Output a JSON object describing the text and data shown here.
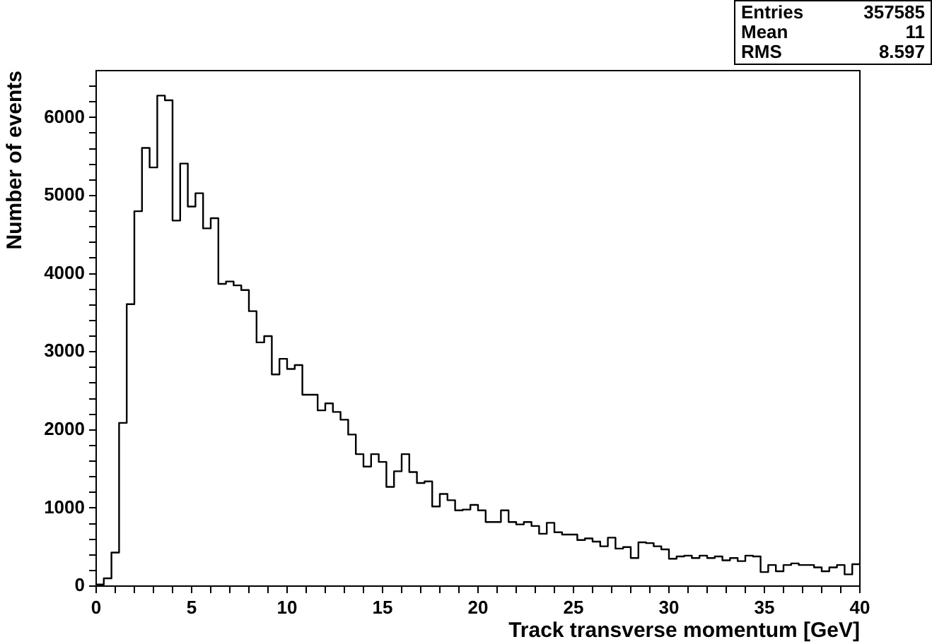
{
  "chart_data": {
    "type": "histogram",
    "xlabel": "Track transverse momentum [GeV]",
    "ylabel": "Number of events",
    "annotations": [
      "Entries",
      "357585",
      "Mean",
      "11",
      "RMS",
      "8.597"
    ],
    "bins": [
      0,
      0.4,
      0.8,
      1.2,
      1.6,
      2,
      2.4,
      2.8,
      3.2,
      3.6,
      4,
      4.4,
      4.8,
      5.2,
      5.6,
      6,
      6.4,
      6.8,
      7.2,
      7.6,
      8,
      8.4,
      8.8,
      9.2,
      9.6,
      10,
      10.4,
      10.8,
      11.2,
      11.6,
      12,
      12.4,
      12.8,
      13.2,
      13.6,
      14,
      14.4,
      14.8,
      15.2,
      15.6,
      16,
      16.4,
      16.8,
      17.2,
      17.6,
      18,
      18.4,
      18.8,
      19.2,
      19.6,
      20,
      20.4,
      20.8,
      21.2,
      21.6,
      22,
      22.4,
      22.8,
      23.2,
      23.6,
      24,
      24.4,
      24.8,
      25.2,
      25.6,
      26,
      26.4,
      26.8,
      27.2,
      27.6,
      28,
      28.4,
      28.8,
      29.2,
      29.6,
      30,
      30.4,
      30.8,
      31.2,
      31.6,
      32,
      32.4,
      32.8,
      33.2,
      33.6,
      34,
      34.4,
      34.8,
      35.2,
      35.6,
      36,
      36.4,
      36.8,
      37.2,
      37.6,
      38,
      38.4,
      38.8,
      39.2,
      39.6,
      40
    ],
    "values": [
      20,
      100,
      430,
      2090,
      3610,
      4800,
      5610,
      5360,
      6280,
      6220,
      4680,
      5410,
      4860,
      5030,
      4580,
      4710,
      3870,
      3900,
      3850,
      3790,
      3520,
      3120,
      3200,
      2710,
      2910,
      2780,
      2830,
      2450,
      2450,
      2250,
      2340,
      2230,
      2130,
      1940,
      1690,
      1530,
      1690,
      1590,
      1270,
      1470,
      1690,
      1460,
      1320,
      1340,
      1020,
      1180,
      1100,
      970,
      980,
      1040,
      970,
      820,
      820,
      970,
      820,
      790,
      820,
      770,
      670,
      810,
      690,
      660,
      660,
      590,
      610,
      570,
      510,
      620,
      480,
      500,
      360,
      560,
      550,
      510,
      470,
      350,
      380,
      390,
      360,
      390,
      360,
      380,
      330,
      360,
      320,
      390,
      380,
      180,
      270,
      190,
      270,
      290,
      270,
      270,
      240,
      190,
      240,
      270,
      150,
      280
    ],
    "color": "#000000",
    "xlim": [
      0,
      40
    ],
    "ylim": [
      0,
      6600
    ],
    "xticks": [
      0,
      {
        "value": 1,
        "label": null
      },
      {
        "value": 2,
        "label": null
      },
      {
        "value": 3,
        "label": null
      },
      {
        "value": 4,
        "label": null
      },
      5,
      {
        "value": 6,
        "label": null
      },
      {
        "value": 7,
        "label": null
      },
      {
        "value": 8,
        "label": null
      },
      {
        "value": 9,
        "label": null
      },
      10,
      {
        "value": 11,
        "label": null
      },
      {
        "value": 12,
        "label": null
      },
      {
        "value": 13,
        "label": null
      },
      {
        "value": 14,
        "label": null
      },
      15,
      {
        "value": 16,
        "label": null
      },
      {
        "value": 17,
        "label": null
      },
      {
        "value": 18,
        "label": null
      },
      {
        "value": 19,
        "label": null
      },
      20,
      {
        "value": 21,
        "label": null
      },
      {
        "value": 22,
        "label": null
      },
      {
        "value": 23,
        "label": null
      },
      {
        "value": 24,
        "label": null
      },
      25,
      {
        "value": 26,
        "label": null
      },
      {
        "value": 27,
        "label": null
      },
      {
        "value": 28,
        "label": null
      },
      {
        "value": 29,
        "label": null
      },
      30,
      {
        "value": 31,
        "label": null
      },
      {
        "value": 32,
        "label": null
      },
      {
        "value": 33,
        "label": null
      },
      {
        "value": 34,
        "label": null
      },
      35,
      {
        "value": 36,
        "label": null
      },
      {
        "value": 37,
        "label": null
      },
      {
        "value": 38,
        "label": null
      },
      {
        "value": 39,
        "label": null
      },
      40
    ],
    "yticks": [
      0,
      {
        "value": 200,
        "label": null
      },
      {
        "value": 400,
        "label": null
      },
      {
        "value": 600,
        "label": null
      },
      {
        "value": 800,
        "label": null
      },
      1000,
      {
        "value": 1200,
        "label": null
      },
      {
        "value": 1400,
        "label": null
      },
      {
        "value": 1600,
        "label": null
      },
      {
        "value": 1800,
        "label": null
      },
      2000,
      {
        "value": 2200,
        "label": null
      },
      {
        "value": 2400,
        "label": null
      },
      {
        "value": 2600,
        "label": null
      },
      {
        "value": 2800,
        "label": null
      },
      3000,
      {
        "value": 3200,
        "label": null
      },
      {
        "value": 3400,
        "label": null
      },
      {
        "value": 3600,
        "label": null
      },
      {
        "value": 3800,
        "label": null
      },
      4000,
      {
        "value": 4200,
        "label": null
      },
      {
        "value": 4400,
        "label": null
      },
      {
        "value": 4600,
        "label": null
      },
      {
        "value": 4800,
        "label": null
      },
      5000,
      {
        "value": 5200,
        "label": null
      },
      {
        "value": 5400,
        "label": null
      },
      {
        "value": 5600,
        "label": null
      },
      {
        "value": 5800,
        "label": null
      },
      6000,
      {
        "value": 6200,
        "label": null
      },
      {
        "value": 6400,
        "label": null
      }
    ]
  }
}
